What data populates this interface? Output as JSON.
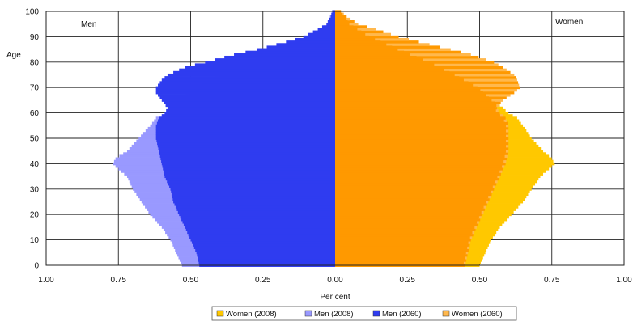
{
  "chart_data": {
    "type": "population-pyramid",
    "title": "",
    "xlabel": "Per cent",
    "ylabel": "Age",
    "panel_labels": {
      "left": "Men",
      "right": "Women"
    },
    "x_ticks": [
      "1.00",
      "0.75",
      "0.50",
      "0.25",
      "0.00",
      "0.25",
      "0.50",
      "0.75",
      "1.00"
    ],
    "x_tick_values": [
      -1,
      -0.75,
      -0.5,
      -0.25,
      0,
      0.25,
      0.5,
      0.75,
      1
    ],
    "xlim": [
      -1,
      1
    ],
    "y_ticks": [
      "0",
      "10",
      "20",
      "30",
      "40",
      "50",
      "60",
      "70",
      "80",
      "90",
      "100"
    ],
    "y_tick_values": [
      0,
      10,
      20,
      30,
      40,
      50,
      60,
      70,
      80,
      90,
      100
    ],
    "ylim": [
      0,
      100
    ],
    "grid": true,
    "legend_position": "bottom",
    "legend": [
      {
        "label": "Women (2008)",
        "series": "women_2008"
      },
      {
        "label": "Men (2008)",
        "series": "men_2008"
      },
      {
        "label": "Men (2060)",
        "series": "men_2060"
      },
      {
        "label": "Women (2060)",
        "series": "women_2060"
      }
    ],
    "series": {
      "men_2008": {
        "color": "#9999ff",
        "side": "left",
        "age": [
          0,
          5,
          10,
          15,
          20,
          25,
          30,
          35,
          38,
          40,
          42,
          45,
          50,
          55,
          58,
          60,
          62,
          65,
          70,
          75,
          80,
          85,
          90,
          95,
          100
        ],
        "value": [
          0.53,
          0.55,
          0.57,
          0.6,
          0.64,
          0.67,
          0.7,
          0.72,
          0.75,
          0.77,
          0.76,
          0.72,
          0.68,
          0.64,
          0.62,
          0.58,
          0.56,
          0.54,
          0.48,
          0.4,
          0.3,
          0.18,
          0.08,
          0.03,
          0.01
        ]
      },
      "men_2060": {
        "color": "#2f3cf0",
        "side": "left",
        "age": [
          0,
          5,
          10,
          15,
          20,
          25,
          30,
          35,
          40,
          45,
          50,
          55,
          58,
          60,
          62,
          65,
          68,
          70,
          73,
          75,
          78,
          80,
          83,
          85,
          88,
          90,
          93,
          95,
          98,
          100
        ],
        "value": [
          0.47,
          0.48,
          0.5,
          0.52,
          0.54,
          0.56,
          0.57,
          0.59,
          0.6,
          0.61,
          0.62,
          0.62,
          0.61,
          0.59,
          0.58,
          0.6,
          0.62,
          0.62,
          0.6,
          0.58,
          0.52,
          0.45,
          0.35,
          0.27,
          0.17,
          0.11,
          0.06,
          0.03,
          0.015,
          0.01
        ]
      },
      "women_2008": {
        "color": "#ffc800",
        "side": "right",
        "age": [
          0,
          5,
          10,
          15,
          20,
          25,
          30,
          35,
          38,
          40,
          42,
          45,
          50,
          55,
          58,
          60,
          62,
          65,
          70,
          75,
          80,
          85,
          90,
          95,
          100
        ],
        "value": [
          0.5,
          0.52,
          0.54,
          0.57,
          0.61,
          0.65,
          0.68,
          0.71,
          0.74,
          0.76,
          0.75,
          0.72,
          0.68,
          0.65,
          0.63,
          0.6,
          0.58,
          0.55,
          0.5,
          0.42,
          0.33,
          0.22,
          0.12,
          0.05,
          0.02
        ]
      },
      "women_2060": {
        "color": "#ffb84d",
        "side": "right",
        "age": [
          0,
          5,
          10,
          15,
          20,
          25,
          30,
          35,
          40,
          45,
          50,
          55,
          58,
          60,
          62,
          65,
          68,
          70,
          73,
          75,
          78,
          80,
          83,
          85,
          88,
          90,
          93,
          95,
          98,
          100
        ],
        "value": [
          0.45,
          0.46,
          0.47,
          0.49,
          0.51,
          0.53,
          0.55,
          0.57,
          0.59,
          0.6,
          0.6,
          0.6,
          0.59,
          0.57,
          0.56,
          0.58,
          0.62,
          0.64,
          0.63,
          0.62,
          0.58,
          0.55,
          0.47,
          0.4,
          0.29,
          0.22,
          0.14,
          0.08,
          0.04,
          0.02
        ]
      }
    },
    "orange_core": "#ff9900"
  }
}
